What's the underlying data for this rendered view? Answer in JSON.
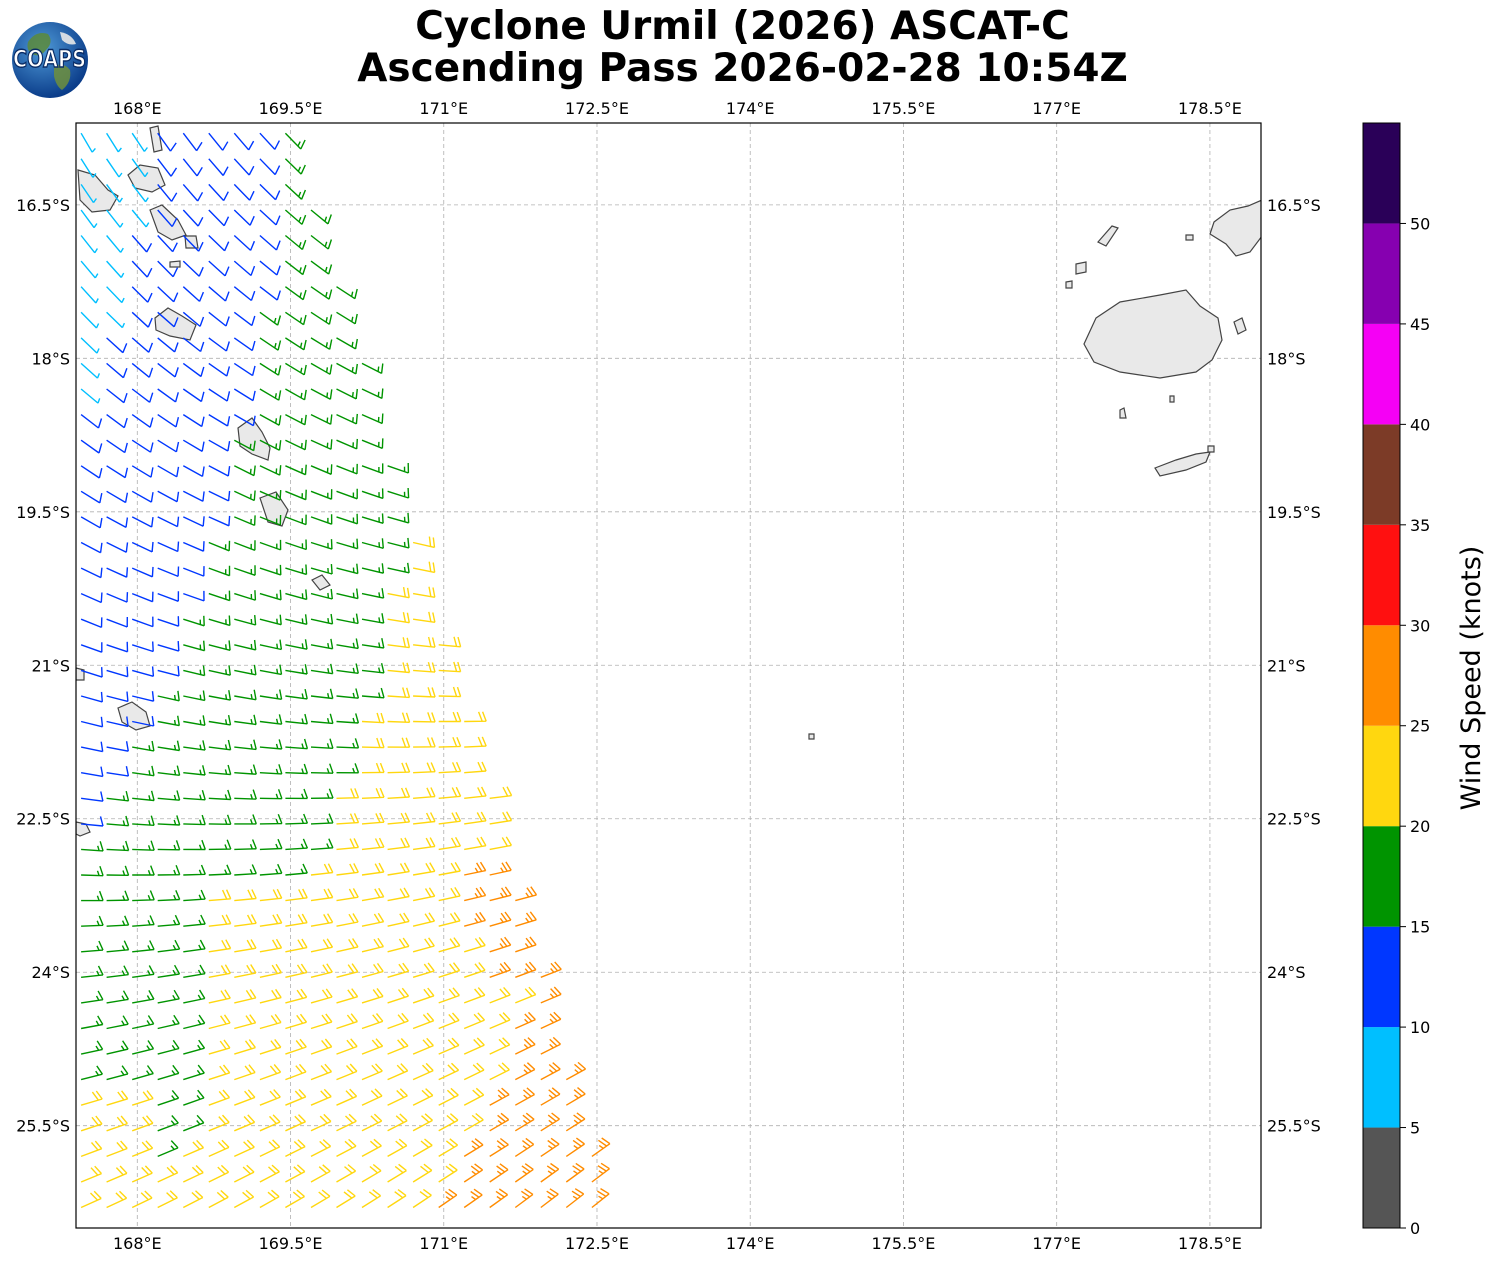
{
  "title": {
    "line1": "Cyclone Urmil (2026) ASCAT-C",
    "line2": "Ascending Pass 2026-02-28 10:54Z"
  },
  "logo": {
    "text": "COAPS",
    "icon": "globe-icon"
  },
  "map": {
    "lon_range": [
      167.4,
      179.0
    ],
    "lat_range": [
      -26.5,
      -15.7
    ],
    "lon_ticks": [
      {
        "value": 168.0,
        "label": "168°E"
      },
      {
        "value": 169.5,
        "label": "169.5°E"
      },
      {
        "value": 171.0,
        "label": "171°E"
      },
      {
        "value": 172.5,
        "label": "172.5°E"
      },
      {
        "value": 174.0,
        "label": "174°E"
      },
      {
        "value": 175.5,
        "label": "175.5°E"
      },
      {
        "value": 177.0,
        "label": "177°E"
      },
      {
        "value": 178.5,
        "label": "178.5°E"
      }
    ],
    "lat_ticks": [
      {
        "value": -16.5,
        "label": "16.5°S"
      },
      {
        "value": -18.0,
        "label": "18°S"
      },
      {
        "value": -19.5,
        "label": "19.5°S"
      },
      {
        "value": -21.0,
        "label": "21°S"
      },
      {
        "value": -22.5,
        "label": "22.5°S"
      },
      {
        "value": -24.0,
        "label": "24°S"
      },
      {
        "value": -25.5,
        "label": "25.5°S"
      }
    ],
    "grid": true,
    "colors": {
      "land": "#e9e9e9",
      "coast": "#444444",
      "grid": "#b0b0b0"
    }
  },
  "colorbar": {
    "label": "Wind Speed (knots)",
    "bins": [
      {
        "min": 0,
        "max": 5,
        "color": "#555555"
      },
      {
        "min": 5,
        "max": 10,
        "color": "#00bfff"
      },
      {
        "min": 10,
        "max": 15,
        "color": "#0037ff"
      },
      {
        "min": 15,
        "max": 20,
        "color": "#009400"
      },
      {
        "min": 20,
        "max": 25,
        "color": "#ffd70f"
      },
      {
        "min": 25,
        "max": 30,
        "color": "#ff8c00"
      },
      {
        "min": 30,
        "max": 35,
        "color": "#ff1010"
      },
      {
        "min": 35,
        "max": 40,
        "color": "#7c3b27"
      },
      {
        "min": 40,
        "max": 45,
        "color": "#f500f5"
      },
      {
        "min": 45,
        "max": 50,
        "color": "#8600b0"
      },
      {
        "min": 50,
        "max": 55,
        "color": "#2a0058"
      }
    ],
    "tick_labels": [
      "0",
      "5",
      "10",
      "15",
      "20",
      "25",
      "30",
      "35",
      "40",
      "45",
      "50"
    ]
  }
}
